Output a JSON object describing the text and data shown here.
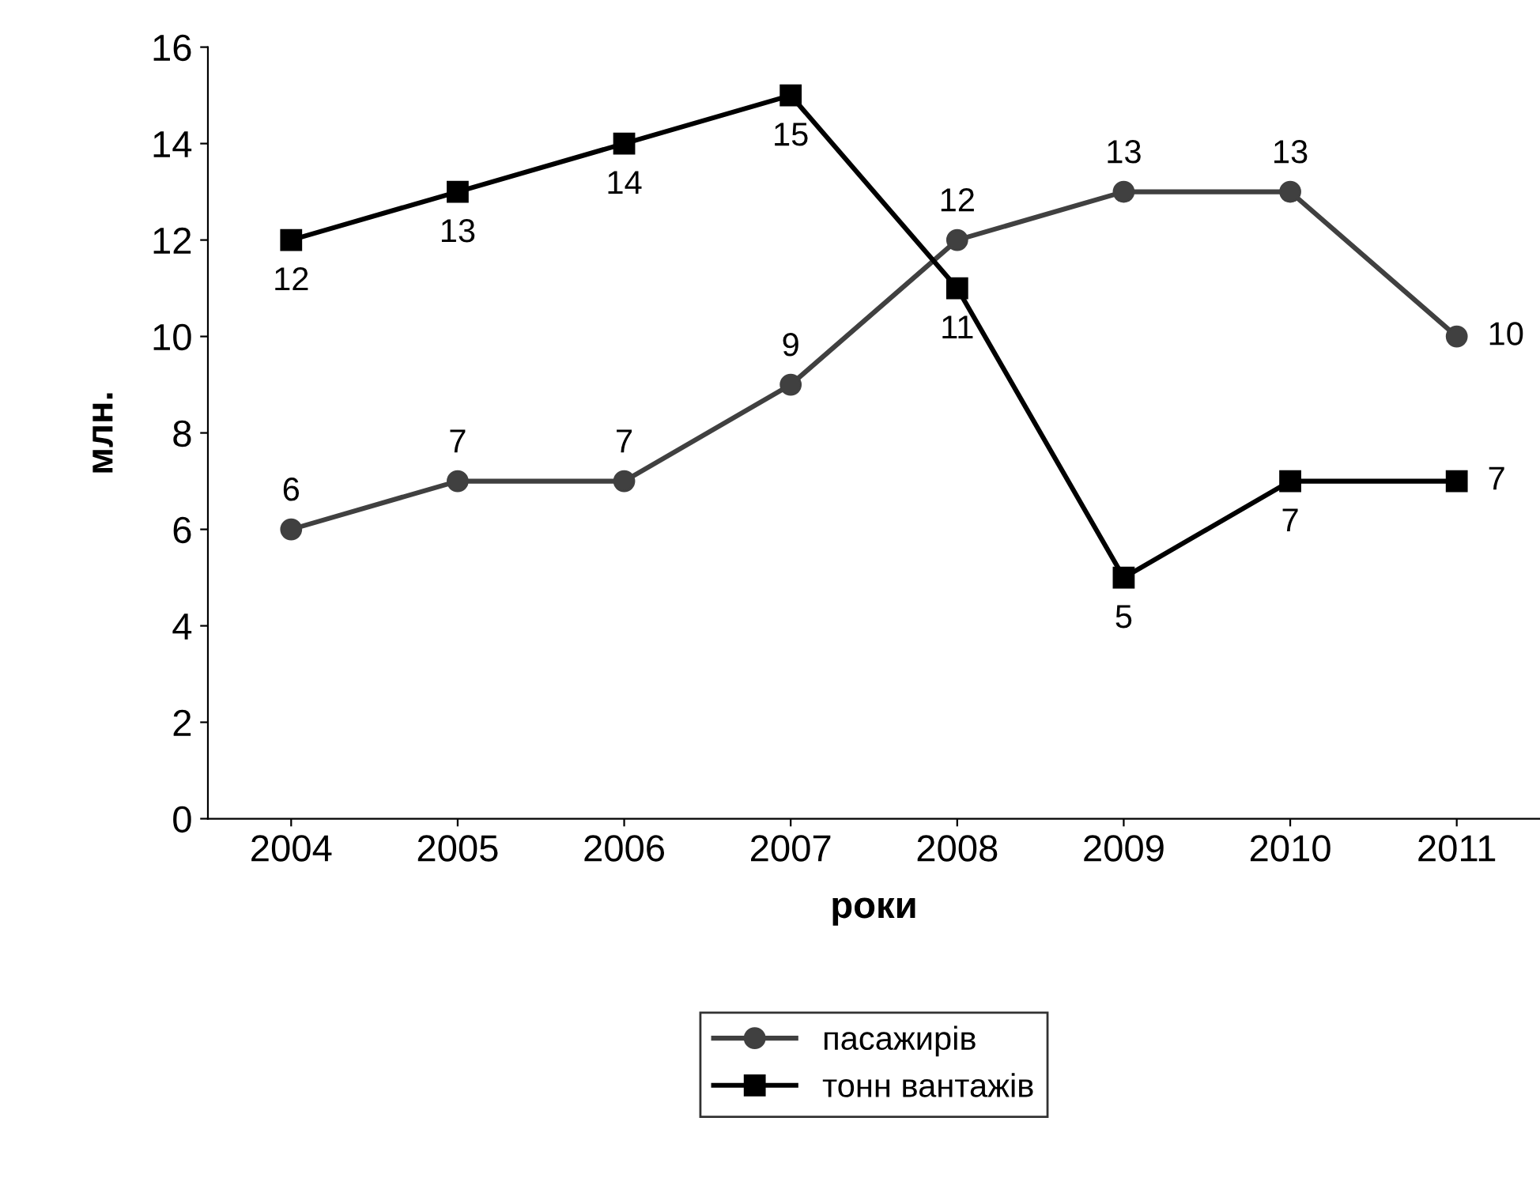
{
  "chart_data": {
    "type": "line",
    "xlabel": "роки",
    "ylabel": "млн.",
    "categories": [
      "2004",
      "2005",
      "2006",
      "2007",
      "2008",
      "2009",
      "2010",
      "2011"
    ],
    "series": [
      {
        "name": "пасажирів",
        "color": "#404040",
        "marker": "circle",
        "values": [
          6,
          7,
          7,
          9,
          12,
          13,
          13,
          10
        ]
      },
      {
        "name": "тонн вантажів",
        "color": "#000000",
        "marker": "square",
        "values": [
          12,
          13,
          14,
          15,
          11,
          5,
          7,
          7
        ]
      }
    ],
    "ylim": [
      0,
      16
    ],
    "yticks": [
      0,
      2,
      4,
      6,
      8,
      10,
      12,
      14,
      16
    ],
    "data_labels": true,
    "grid": false,
    "legend": "bottom",
    "line_style": "solid"
  }
}
